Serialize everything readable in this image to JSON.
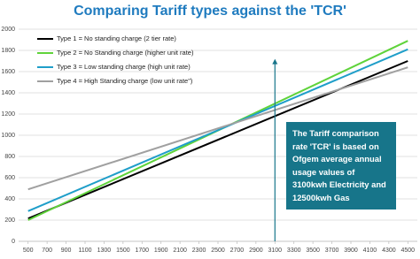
{
  "chart_data": {
    "type": "line",
    "title": "Comparing Tariff types against the 'TCR'",
    "x": [
      500,
      4500
    ],
    "xlim": [
      400,
      4600
    ],
    "xticks": [
      500,
      700,
      900,
      1100,
      1300,
      1500,
      1700,
      1900,
      2100,
      2300,
      2500,
      2700,
      2900,
      3100,
      3300,
      3500,
      3700,
      3900,
      4100,
      4300,
      4500
    ],
    "ylim": [
      0,
      2000
    ],
    "yticks": [
      0,
      200,
      400,
      600,
      800,
      1000,
      1200,
      1400,
      1600,
      1800,
      2000
    ],
    "grid": true,
    "legend": "upper-left",
    "series": [
      {
        "name": "Type 1 = No standing charge (2 tier rate)",
        "color": "#000000",
        "values": [
          215,
          1700
        ]
      },
      {
        "name": "Type 2 = No Standing charge (higher unit rate)",
        "color": "#5fd33a",
        "values": [
          200,
          1890
        ]
      },
      {
        "name": "Type 3 = Low standing charge (high unit rate)",
        "color": "#1f9ec9",
        "values": [
          285,
          1810
        ]
      },
      {
        "name": "Type 4 = High Standing charge (low unit rate\")",
        "color": "#a0a0a0",
        "values": [
          490,
          1640
        ]
      }
    ],
    "marker_x": 3100,
    "marker_top": 1720,
    "marker_color": "#17758a",
    "annotation": "The Tariff comparison rate 'TCR' is based on Ofgem average annual usage values of 3100kwh Electricity and 12500kwh Gas"
  }
}
